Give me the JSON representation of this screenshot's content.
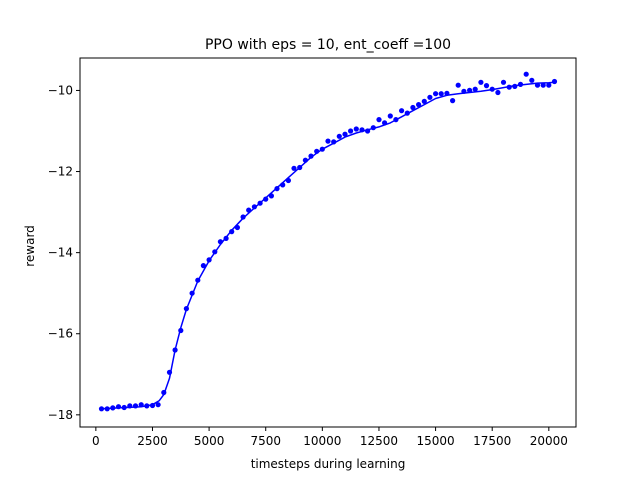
{
  "chart_data": {
    "type": "scatter",
    "title": "PPO with eps = 10, ent_coeff =100",
    "xlabel": "timesteps during learning",
    "ylabel": "reward",
    "xlim": [
      -700,
      21200
    ],
    "ylim": [
      -18.3,
      -9.2
    ],
    "xticks": [
      0,
      2500,
      5000,
      7500,
      10000,
      12500,
      15000,
      17500,
      20000
    ],
    "xtick_labels": [
      "0",
      "2500",
      "5000",
      "7500",
      "10000",
      "12500",
      "15000",
      "17500",
      "20000"
    ],
    "yticks": [
      -18,
      -16,
      -14,
      -12,
      -10
    ],
    "ytick_labels": [
      "−18",
      "−16",
      "−14",
      "−12",
      "−10"
    ],
    "grid": false,
    "colors": {
      "points": "#0000ff",
      "fit_line": "#0000ff"
    },
    "series": [
      {
        "kind": "points",
        "x": [
          250,
          500,
          750,
          1000,
          1250,
          1500,
          1750,
          2000,
          2250,
          2500,
          2750,
          3000,
          3250,
          3500,
          3750,
          4000,
          4250,
          4500,
          4750,
          5000,
          5250,
          5500,
          5750,
          6000,
          6250,
          6500,
          6750,
          7000,
          7250,
          7500,
          7750,
          8000,
          8250,
          8500,
          8750,
          9000,
          9250,
          9500,
          9750,
          10000,
          10250,
          10500,
          10750,
          11000,
          11250,
          11500,
          11750,
          12000,
          12250,
          12500,
          12750,
          13000,
          13250,
          13500,
          13750,
          14000,
          14250,
          14500,
          14750,
          15000,
          15250,
          15500,
          15750,
          16000,
          16250,
          16500,
          16750,
          17000,
          17250,
          17500,
          17750,
          18000,
          18250,
          18500,
          18750,
          19000,
          19250,
          19500,
          19750,
          20000,
          20250
        ],
        "y": [
          -17.85,
          -17.85,
          -17.83,
          -17.8,
          -17.82,
          -17.78,
          -17.78,
          -17.75,
          -17.78,
          -17.77,
          -17.75,
          -17.45,
          -16.95,
          -16.4,
          -15.92,
          -15.38,
          -15.0,
          -14.68,
          -14.32,
          -14.18,
          -13.98,
          -13.73,
          -13.65,
          -13.48,
          -13.38,
          -13.12,
          -12.95,
          -12.87,
          -12.78,
          -12.68,
          -12.6,
          -12.42,
          -12.33,
          -12.22,
          -11.92,
          -11.9,
          -11.72,
          -11.62,
          -11.5,
          -11.45,
          -11.25,
          -11.27,
          -11.13,
          -11.08,
          -11.0,
          -10.95,
          -10.97,
          -11.0,
          -10.92,
          -10.72,
          -10.8,
          -10.63,
          -10.72,
          -10.5,
          -10.56,
          -10.42,
          -10.35,
          -10.27,
          -10.17,
          -10.08,
          -10.08,
          -10.07,
          -10.25,
          -9.87,
          -10.02,
          -10.0,
          -9.97,
          -9.8,
          -9.88,
          -9.97,
          -10.05,
          -9.8,
          -9.92,
          -9.9,
          -9.85,
          -9.6,
          -9.75,
          -9.87,
          -9.87,
          -9.87,
          -9.78
        ]
      },
      {
        "kind": "fit_line",
        "x": [
          250,
          1000,
          2000,
          2500,
          2800,
          3000,
          3250,
          3500,
          3750,
          4000,
          4500,
          5000,
          5500,
          6000,
          6500,
          7000,
          7500,
          8000,
          8500,
          9000,
          9500,
          10000,
          10500,
          11000,
          11500,
          12000,
          12500,
          13000,
          13500,
          14000,
          14500,
          15000,
          15500,
          16000,
          16500,
          17000,
          17500,
          18000,
          18500,
          19000,
          19500,
          20000,
          20250
        ],
        "y": [
          -17.85,
          -17.83,
          -17.8,
          -17.75,
          -17.65,
          -17.5,
          -17.1,
          -16.4,
          -15.85,
          -15.4,
          -14.7,
          -14.2,
          -13.8,
          -13.45,
          -13.15,
          -12.9,
          -12.65,
          -12.4,
          -12.15,
          -11.9,
          -11.65,
          -11.45,
          -11.3,
          -11.15,
          -11.05,
          -10.97,
          -10.9,
          -10.8,
          -10.65,
          -10.5,
          -10.35,
          -10.2,
          -10.12,
          -10.08,
          -10.05,
          -10.02,
          -9.98,
          -9.93,
          -9.88,
          -9.85,
          -9.82,
          -9.81,
          -9.8
        ]
      }
    ]
  }
}
